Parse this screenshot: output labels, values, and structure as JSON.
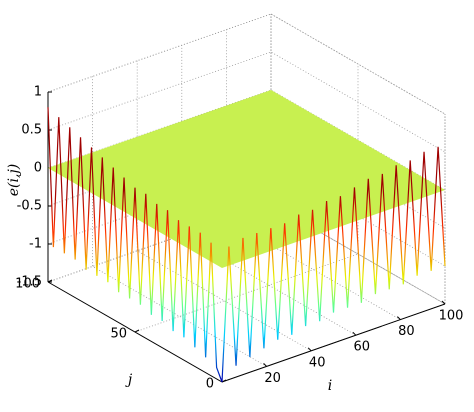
{
  "chart_data": {
    "type": "surface",
    "xlabel": "i",
    "ylabel": "j",
    "zlabel": "e(i,j)",
    "xlim": [
      0,
      100
    ],
    "ylim": [
      0,
      100
    ],
    "zlim": [
      -1.5,
      1
    ],
    "xticks": [
      20,
      40,
      60,
      80,
      100
    ],
    "yticks": [
      0,
      50,
      100
    ],
    "zticks": [
      -1.5,
      -1,
      -0.5,
      0,
      0.5,
      1
    ],
    "grid": true,
    "plane_value": 0,
    "plane_color": "#c8f050",
    "edges": [
      {
        "j": [
          100,
          96.9,
          93.8,
          90.6,
          87.5,
          84.4,
          81.3,
          78.1,
          75,
          71.9,
          68.8,
          65.6,
          62.5,
          59.4,
          56.3,
          53.1,
          50,
          46.9,
          43.8,
          40.6,
          37.5,
          34.4,
          31.3,
          28.1,
          25,
          21.9,
          18.8,
          15.6,
          12.5,
          9.4,
          6.3,
          3.1,
          0
        ],
        "values": [
          0.8,
          -1.0,
          0.75,
          -1.0,
          0.7,
          -1.0,
          0.65,
          -1.05,
          0.6,
          -1.05,
          0.55,
          -1.05,
          0.5,
          -1.1,
          0.45,
          -1.1,
          0.4,
          -1.1,
          0.4,
          -1.15,
          0.35,
          -1.15,
          0.35,
          -1.2,
          0.3,
          -1.2,
          0.3,
          -1.25,
          0.3,
          -1.3,
          0.25,
          -1.35,
          -1.5
        ]
      },
      {
        "i": [
          0,
          3.1,
          6.3,
          9.4,
          12.5,
          15.6,
          18.8,
          21.9,
          25,
          28.1,
          31.3,
          34.4,
          37.5,
          40.6,
          43.8,
          46.9,
          50,
          53.1,
          56.3,
          59.4,
          62.5,
          65.6,
          68.8,
          71.9,
          75,
          78.1,
          81.3,
          84.4,
          87.5,
          90.6,
          93.8,
          96.9,
          100
        ],
        "values": [
          -1.5,
          0.25,
          -1.35,
          0.3,
          -1.3,
          0.3,
          -1.25,
          0.3,
          -1.2,
          0.3,
          -1.2,
          0.35,
          -1.15,
          0.35,
          -1.15,
          0.4,
          -1.1,
          0.4,
          -1.1,
          0.45,
          -1.1,
          0.5,
          -1.05,
          0.5,
          -1.05,
          0.55,
          -1.05,
          0.55,
          -1.0,
          0.6,
          -1.0,
          0.6,
          -1.0
        ]
      }
    ]
  }
}
